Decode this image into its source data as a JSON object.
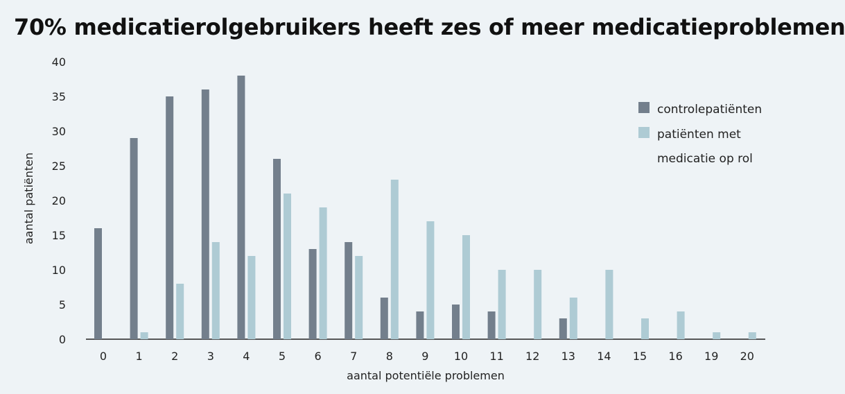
{
  "chart_data": {
    "type": "bar",
    "title": "70% medicatierolgebruikers heeft zes of meer medicatieproblemen",
    "xlabel": "aantal potentiële problemen",
    "ylabel": "aantal patiënten",
    "ylim": [
      0,
      40
    ],
    "yticks": [
      0,
      5,
      10,
      15,
      20,
      25,
      30,
      35,
      40
    ],
    "categories": [
      "0",
      "1",
      "2",
      "3",
      "4",
      "5",
      "6",
      "7",
      "8",
      "9",
      "10",
      "11",
      "12",
      "13",
      "14",
      "15",
      "16",
      "19",
      "20"
    ],
    "series": [
      {
        "name": "controlepatiënten",
        "color": "#737f8c",
        "values": [
          16,
          29,
          35,
          36,
          38,
          26,
          13,
          14,
          6,
          4,
          5,
          4,
          0,
          3,
          0,
          0,
          0,
          0,
          0
        ]
      },
      {
        "name": "patiënten met medicatie op rol",
        "color": "#aecbd4",
        "values": [
          0,
          1,
          8,
          14,
          12,
          21,
          19,
          12,
          23,
          17,
          15,
          10,
          10,
          6,
          10,
          3,
          4,
          1,
          1
        ]
      }
    ],
    "legend": {
      "position": "right",
      "lines": [
        "controlepatiënten",
        "patiënten met",
        "medicatie op rol"
      ]
    },
    "grid": false
  }
}
